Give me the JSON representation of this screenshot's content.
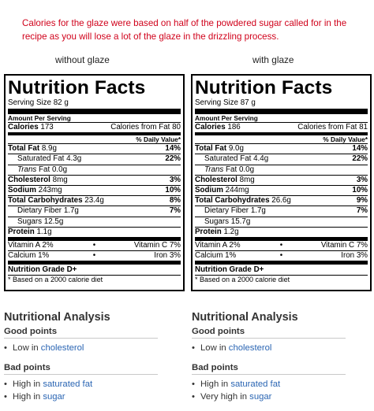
{
  "note": "Calories for the glaze were based on half of the powdered sugar called for in the recipe as you will lose a lot of the glaze in the drizzling process.",
  "labels": [
    {
      "column_label": "without glaze",
      "title": "Nutrition Facts",
      "serving_size": "Serving Size 82 g",
      "amount_per_serving": "Amount Per Serving",
      "calories_label": "Calories",
      "calories": "173",
      "calories_from_fat": "Calories from Fat 80",
      "daily_value_header": "% Daily Value*",
      "nutrients": [
        {
          "label": "Total Fat",
          "amount": "8.9g",
          "dv": "14%",
          "bold": true,
          "sub": false
        },
        {
          "label": "Saturated Fat",
          "amount": "4.3g",
          "dv": "22%",
          "bold": false,
          "sub": true
        },
        {
          "label": "Trans",
          "label_rest": " Fat",
          "amount": "0.0g",
          "dv": "",
          "bold": false,
          "sub": true
        },
        {
          "label": "Cholesterol",
          "amount": "8mg",
          "dv": "3%",
          "bold": true,
          "sub": false
        },
        {
          "label": "Sodium",
          "amount": "243mg",
          "dv": "10%",
          "bold": true,
          "sub": false
        },
        {
          "label": "Total Carbohydrates",
          "amount": "23.4g",
          "dv": "8%",
          "bold": true,
          "sub": false
        },
        {
          "label": "Dietary Fiber",
          "amount": "1.7g",
          "dv": "7%",
          "bold": false,
          "sub": true
        },
        {
          "label": "Sugars",
          "amount": "12.5g",
          "dv": "",
          "bold": false,
          "sub": true
        },
        {
          "label": "Protein",
          "amount": "1.1g",
          "dv": "",
          "bold": true,
          "sub": false
        }
      ],
      "vitamins": [
        {
          "left": "Vitamin A 2%",
          "right": "Vitamin C 7%"
        },
        {
          "left": "Calcium 1%",
          "right": "Iron 3%"
        }
      ],
      "grade": "Nutrition Grade D+",
      "footnote": "* Based on a 2000 calorie diet",
      "analysis": {
        "title": "Nutritional Analysis",
        "good_heading": "Good points",
        "good": [
          {
            "prefix": "Low in ",
            "link": "cholesterol"
          }
        ],
        "bad_heading": "Bad points",
        "bad": [
          {
            "prefix": "High in ",
            "link": "saturated fat"
          },
          {
            "prefix": "High in ",
            "link": "sugar"
          }
        ]
      }
    },
    {
      "column_label": "with glaze",
      "title": "Nutrition Facts",
      "serving_size": "Serving Size 87 g",
      "amount_per_serving": "Amount Per Serving",
      "calories_label": "Calories",
      "calories": "186",
      "calories_from_fat": "Calories from Fat 81",
      "daily_value_header": "% Daily Value*",
      "nutrients": [
        {
          "label": "Total Fat",
          "amount": "9.0g",
          "dv": "14%",
          "bold": true,
          "sub": false
        },
        {
          "label": "Saturated Fat",
          "amount": "4.4g",
          "dv": "22%",
          "bold": false,
          "sub": true
        },
        {
          "label": "Trans",
          "label_rest": " Fat",
          "amount": "0.0g",
          "dv": "",
          "bold": false,
          "sub": true
        },
        {
          "label": "Cholesterol",
          "amount": "8mg",
          "dv": "3%",
          "bold": true,
          "sub": false
        },
        {
          "label": "Sodium",
          "amount": "244mg",
          "dv": "10%",
          "bold": true,
          "sub": false
        },
        {
          "label": "Total Carbohydrates",
          "amount": "26.6g",
          "dv": "9%",
          "bold": true,
          "sub": false
        },
        {
          "label": "Dietary Fiber",
          "amount": "1.7g",
          "dv": "7%",
          "bold": false,
          "sub": true
        },
        {
          "label": "Sugars",
          "amount": "15.7g",
          "dv": "",
          "bold": false,
          "sub": true
        },
        {
          "label": "Protein",
          "amount": "1.2g",
          "dv": "",
          "bold": true,
          "sub": false
        }
      ],
      "vitamins": [
        {
          "left": "Vitamin A 2%",
          "right": "Vitamin C 7%"
        },
        {
          "left": "Calcium 1%",
          "right": "Iron 3%"
        }
      ],
      "grade": "Nutrition Grade D+",
      "footnote": "* Based on a 2000 calorie diet",
      "analysis": {
        "title": "Nutritional Analysis",
        "good_heading": "Good points",
        "good": [
          {
            "prefix": "Low in ",
            "link": "cholesterol"
          }
        ],
        "bad_heading": "Bad points",
        "bad": [
          {
            "prefix": "High in ",
            "link": "saturated fat"
          },
          {
            "prefix": "Very high in ",
            "link": "sugar"
          }
        ]
      }
    }
  ],
  "colors": {
    "note": "#d0021b",
    "link": "#2a65b3",
    "text": "#333333"
  }
}
